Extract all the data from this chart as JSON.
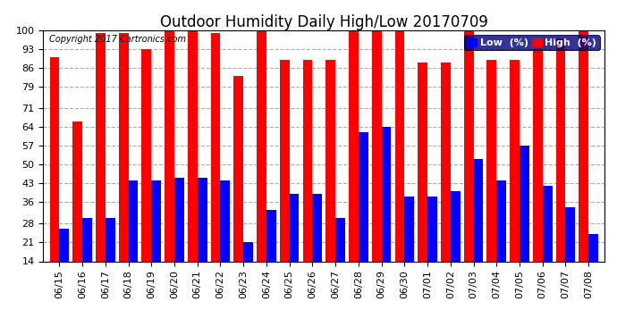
{
  "title": "Outdoor Humidity Daily High/Low 20170709",
  "copyright": "Copyright 2017 Cartronics.com",
  "legend_low": "Low  (%)",
  "legend_high": "High  (%)",
  "dates": [
    "06/15",
    "06/16",
    "06/17",
    "06/18",
    "06/19",
    "06/20",
    "06/21",
    "06/22",
    "06/23",
    "06/24",
    "06/25",
    "06/26",
    "06/27",
    "06/28",
    "06/29",
    "06/30",
    "07/01",
    "07/02",
    "07/03",
    "07/04",
    "07/05",
    "07/06",
    "07/07",
    "07/08"
  ],
  "high": [
    90,
    66,
    99,
    99,
    93,
    100,
    100,
    99,
    83,
    100,
    89,
    89,
    89,
    100,
    100,
    100,
    88,
    88,
    100,
    89,
    89,
    93,
    97,
    100
  ],
  "low": [
    26,
    30,
    30,
    44,
    44,
    45,
    45,
    44,
    21,
    33,
    39,
    39,
    30,
    62,
    64,
    38,
    38,
    40,
    52,
    44,
    57,
    42,
    34,
    24
  ],
  "bar_color_high": "#ff0000",
  "bar_color_low": "#0000ff",
  "background_color": "#ffffff",
  "grid_color": "#aaaaaa",
  "text_color": "#000000",
  "ylim_min": 14,
  "ylim_max": 100,
  "yticks": [
    14,
    21,
    28,
    36,
    43,
    50,
    57,
    64,
    71,
    79,
    86,
    93,
    100
  ],
  "title_fontsize": 12,
  "tick_fontsize": 8,
  "legend_fontsize": 8,
  "bar_width": 0.42,
  "bar_bottom": 14
}
